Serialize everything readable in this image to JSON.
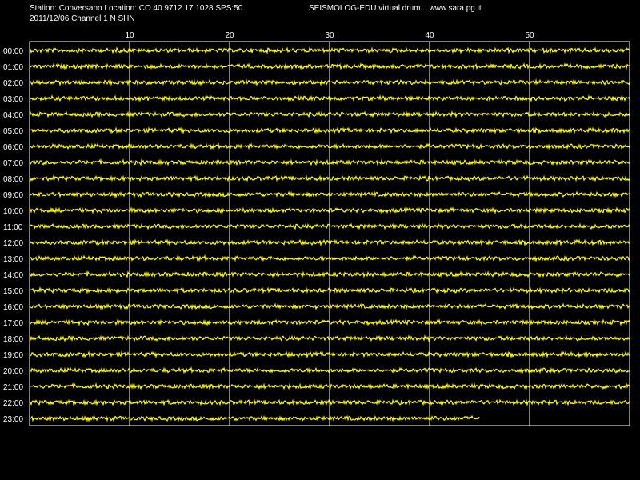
{
  "header": {
    "station_line": "Station: Conversano Location: CO 40.9712 17.1028 SPS:50",
    "date_line": "2011/12/06  Channel 1 N SHN",
    "program_line": "SEISMOLOG-EDU virtual drum... www.sara.pg.it"
  },
  "colors": {
    "background": "#000000",
    "trace": "#ffff00",
    "grid": "#ffffff",
    "text": "#ffffff"
  },
  "chart_data": {
    "type": "line",
    "title": "",
    "xlabel": "",
    "ylabel": "",
    "x_ticks": [
      10,
      20,
      30,
      40,
      50
    ],
    "xlim": [
      0,
      60
    ],
    "grid": true,
    "rows": [
      "00:00",
      "01:00",
      "02:00",
      "03:00",
      "04:00",
      "05:00",
      "06:00",
      "07:00",
      "08:00",
      "09:00",
      "10:00",
      "11:00",
      "12:00",
      "13:00",
      "14:00",
      "15:00",
      "16:00",
      "17:00",
      "18:00",
      "19:00",
      "20:00",
      "21:00",
      "22:00",
      "23:00"
    ],
    "row_end_minutes": [
      60,
      60,
      60,
      60,
      60,
      60,
      60,
      60,
      60,
      60,
      60,
      60,
      60,
      60,
      60,
      60,
      60,
      60,
      60,
      60,
      60,
      60,
      60,
      45
    ]
  }
}
